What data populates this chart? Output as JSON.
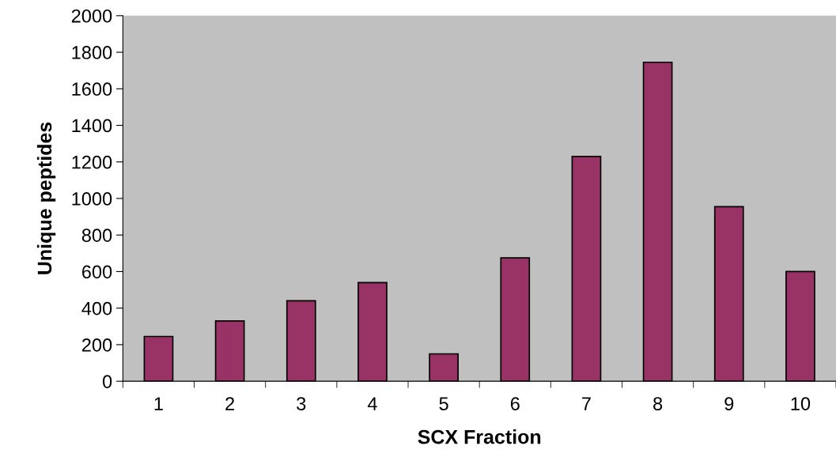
{
  "chart_data": {
    "type": "bar",
    "xlabel": "SCX Fraction",
    "ylabel": "Unique peptides",
    "categories": [
      "1",
      "2",
      "3",
      "4",
      "5",
      "6",
      "7",
      "8",
      "9",
      "10"
    ],
    "values": [
      245,
      330,
      440,
      540,
      150,
      675,
      1230,
      1745,
      955,
      600
    ],
    "color": "#993366",
    "ylim": [
      0,
      2000
    ],
    "yticks": [
      0,
      200,
      400,
      600,
      800,
      1000,
      1200,
      1400,
      1600,
      1800,
      2000
    ],
    "grid": false,
    "legend": false
  }
}
